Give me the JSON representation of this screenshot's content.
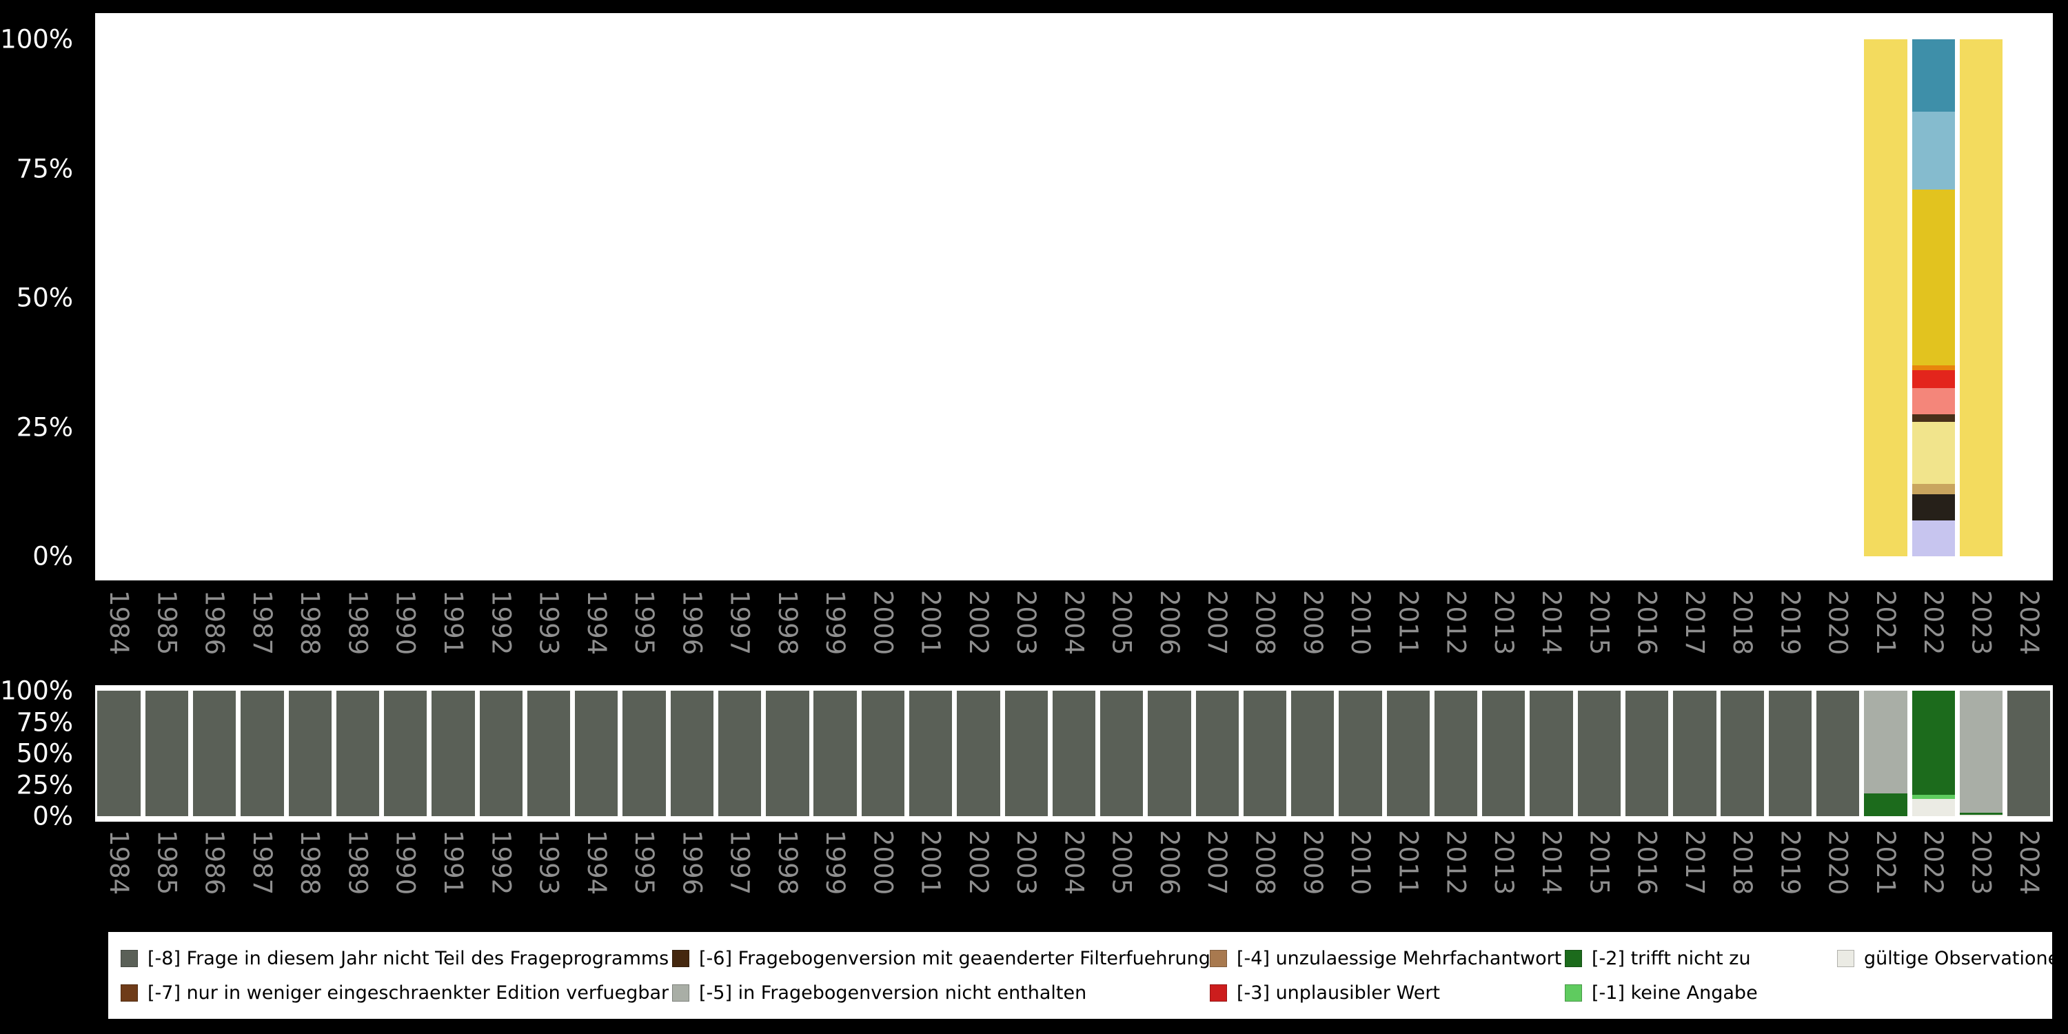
{
  "years": [
    "1984",
    "1985",
    "1986",
    "1987",
    "1988",
    "1989",
    "1990",
    "1991",
    "1992",
    "1993",
    "1994",
    "1995",
    "1996",
    "1997",
    "1998",
    "1999",
    "2000",
    "2001",
    "2002",
    "2003",
    "2004",
    "2005",
    "2006",
    "2007",
    "2008",
    "2009",
    "2010",
    "2011",
    "2012",
    "2013",
    "2014",
    "2015",
    "2016",
    "2017",
    "2018",
    "2019",
    "2020",
    "2021",
    "2022",
    "2023",
    "2024"
  ],
  "y_axis": {
    "ticks": [
      {
        "label": "100%",
        "value": 100
      },
      {
        "label": "75%",
        "value": 75
      },
      {
        "label": "50%",
        "value": 50
      },
      {
        "label": "25%",
        "value": 25
      },
      {
        "label": "0%",
        "value": 0
      }
    ]
  },
  "colors": {
    "background": "#000000",
    "panel": "#ffffff",
    "axis_tick_text": "#ffffff",
    "year_tick_text": "#8f8f8f",
    "legend_text": "#000000"
  },
  "chart_data": [
    {
      "type": "bar",
      "stacked": true,
      "panel": "top",
      "title": "",
      "xlabel": "",
      "ylabel": "",
      "ylim": [
        0,
        100
      ],
      "unit": "percent",
      "grid": false,
      "categories_ref": "years",
      "bars": {
        "2021": [
          {
            "color": "#F3DB5E",
            "value": 100
          }
        ],
        "2022": [
          {
            "color": "#C7C5EF",
            "value": 7
          },
          {
            "color": "#262019",
            "value": 5
          },
          {
            "color": "#C9A55F",
            "value": 2
          },
          {
            "color": "#F1E48C",
            "value": 12
          },
          {
            "color": "#49301A",
            "value": 1.5
          },
          {
            "color": "#F4867A",
            "value": 5
          },
          {
            "color": "#E3251C",
            "value": 3.5
          },
          {
            "color": "#E8860C",
            "value": 1
          },
          {
            "color": "#E2C31F",
            "value": 34
          },
          {
            "color": "#85BBCE",
            "value": 15
          },
          {
            "color": "#3E8FA9",
            "value": 14
          }
        ],
        "2023": [
          {
            "color": "#F3DB5E",
            "value": 100
          }
        ]
      }
    },
    {
      "type": "bar",
      "stacked": true,
      "panel": "bottom",
      "title": "",
      "xlabel": "",
      "ylabel": "",
      "ylim": [
        0,
        100
      ],
      "unit": "percent",
      "grid": false,
      "categories_ref": "years",
      "bars": {
        "default": [
          {
            "label": "[-8] Frage in diesem Jahr nicht Teil des Frageprogramms",
            "color": "#5A6057",
            "value": 100
          }
        ],
        "2021": [
          {
            "label": "[-2] trifft nicht zu",
            "color": "#1C6B1C",
            "value": 18
          },
          {
            "label": "[-5] in Fragebogenversion nicht enthalten",
            "color": "#A9AEA6",
            "value": 82
          }
        ],
        "2022": [
          {
            "label": "gültige Observationen",
            "color": "#EBEBE4",
            "value": 14
          },
          {
            "label": "[-1] keine Angabe",
            "color": "#5FCB5F",
            "value": 3
          },
          {
            "label": "[-2] trifft nicht zu",
            "color": "#1C6B1C",
            "value": 83
          }
        ],
        "2023": [
          {
            "label": "gültige Observationen",
            "color": "#EBEBE4",
            "value": 1
          },
          {
            "label": "[-2] trifft nicht zu",
            "color": "#1C6B1C",
            "value": 2
          },
          {
            "label": "[-5] in Fragebogenversion nicht enthalten",
            "color": "#A9AEA6",
            "value": 97
          }
        ]
      }
    }
  ],
  "legend": {
    "position": "bottom",
    "rows": [
      [
        {
          "label": "[-8] Frage in diesem Jahr nicht Teil des Frageprogramms",
          "color": "#5A6057"
        },
        {
          "label": "[-6] Fragebogenversion mit geaenderter Filterfuehrung",
          "color": "#45280F"
        },
        {
          "label": "[-4] unzulaessige Mehrfachantwort",
          "color": "#A8794F"
        },
        {
          "label": "[-2] trifft nicht zu",
          "color": "#1C6B1C"
        },
        {
          "label": "gültige Observationen",
          "color": "#EBEBE4"
        }
      ],
      [
        {
          "label": "[-7] nur in weniger eingeschraenkter Edition verfuegbar",
          "color": "#6F3C19"
        },
        {
          "label": "[-5] in Fragebogenversion nicht enthalten",
          "color": "#A9AEA6"
        },
        {
          "label": "[-3] unplausibler Wert",
          "color": "#CC1D1D"
        },
        {
          "label": "[-1] keine Angabe",
          "color": "#5FCB5F"
        }
      ]
    ]
  }
}
